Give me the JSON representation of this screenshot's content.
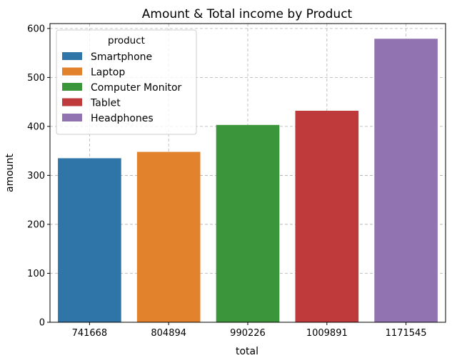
{
  "chart_data": {
    "type": "bar",
    "title": "Amount & Total income by Product",
    "xlabel": "total",
    "ylabel": "amount",
    "categories": [
      "741668",
      "804894",
      "990226",
      "1009891",
      "1171545"
    ],
    "values": [
      335,
      348,
      403,
      432,
      579
    ],
    "ylim": [
      0,
      610
    ],
    "yticks": [
      0,
      100,
      200,
      300,
      400,
      500,
      600
    ],
    "grid": true,
    "legend": {
      "title": "product",
      "placement": "top-left",
      "entries": [
        {
          "label": "Smartphone",
          "color": "#2f75a8"
        },
        {
          "label": "Laptop",
          "color": "#e3822d"
        },
        {
          "label": "Computer Monitor",
          "color": "#3b953b"
        },
        {
          "label": "Tablet",
          "color": "#bf3a3b"
        },
        {
          "label": "Headphones",
          "color": "#9273b1"
        }
      ]
    }
  }
}
